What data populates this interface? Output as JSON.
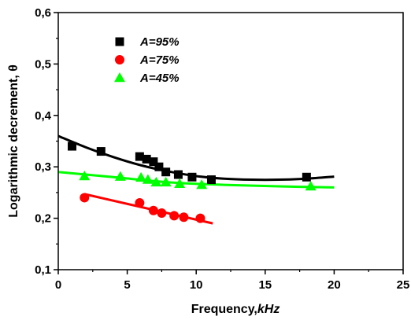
{
  "chart_data": {
    "type": "scatter",
    "xlabel": "Frequency,kHz",
    "xlabel_prefix": "Frequency,",
    "xlabel_unit": "kHz",
    "ylabel": "Logarithmic decrement, θ",
    "xlim": [
      0,
      25
    ],
    "ylim": [
      0.1,
      0.6
    ],
    "x_ticks": [
      0,
      5,
      10,
      15,
      20,
      25
    ],
    "x_tick_labels": [
      "0",
      "5",
      "10",
      "15",
      "20",
      "25"
    ],
    "y_ticks": [
      0.1,
      0.2,
      0.3,
      0.4,
      0.5,
      0.6
    ],
    "y_tick_labels": [
      "0,1",
      "0,2",
      "0,3",
      "0,4",
      "0,5",
      "0,6"
    ],
    "grid": false,
    "legend_position": "top-left",
    "series": [
      {
        "name": "A=95%",
        "marker": "square",
        "color": "#000000",
        "x": [
          1.0,
          3.1,
          5.9,
          6.4,
          6.9,
          7.3,
          7.8,
          8.7,
          9.7,
          11.1,
          18.0
        ],
        "y": [
          0.34,
          0.33,
          0.32,
          0.315,
          0.31,
          0.3,
          0.29,
          0.285,
          0.28,
          0.275,
          0.28
        ],
        "fit": {
          "color": "#000000",
          "x": [
            0,
            2,
            4,
            6,
            8,
            10,
            12,
            14,
            16,
            18,
            20
          ],
          "y": [
            0.36,
            0.338,
            0.319,
            0.303,
            0.291,
            0.282,
            0.277,
            0.275,
            0.275,
            0.277,
            0.281
          ]
        }
      },
      {
        "name": "A=75%",
        "marker": "circle",
        "color": "#ff0000",
        "x": [
          1.9,
          5.9,
          6.9,
          7.5,
          8.4,
          9.1,
          10.3
        ],
        "y": [
          0.24,
          0.23,
          0.215,
          0.21,
          0.205,
          0.202,
          0.2
        ],
        "fit": {
          "color": "#ff0000",
          "x": [
            1.9,
            11.2
          ],
          "y": [
            0.247,
            0.19
          ]
        }
      },
      {
        "name": "A=45%",
        "marker": "triangle",
        "color": "#00ff00",
        "x": [
          1.9,
          4.5,
          6.0,
          6.5,
          7.1,
          7.8,
          8.8,
          10.4,
          18.3
        ],
        "y": [
          0.282,
          0.281,
          0.279,
          0.275,
          0.27,
          0.27,
          0.267,
          0.265,
          0.262
        ],
        "fit": {
          "color": "#00ff00",
          "x": [
            0,
            4,
            8,
            12,
            16,
            20
          ],
          "y": [
            0.29,
            0.28,
            0.27,
            0.265,
            0.262,
            0.26
          ]
        }
      }
    ]
  }
}
